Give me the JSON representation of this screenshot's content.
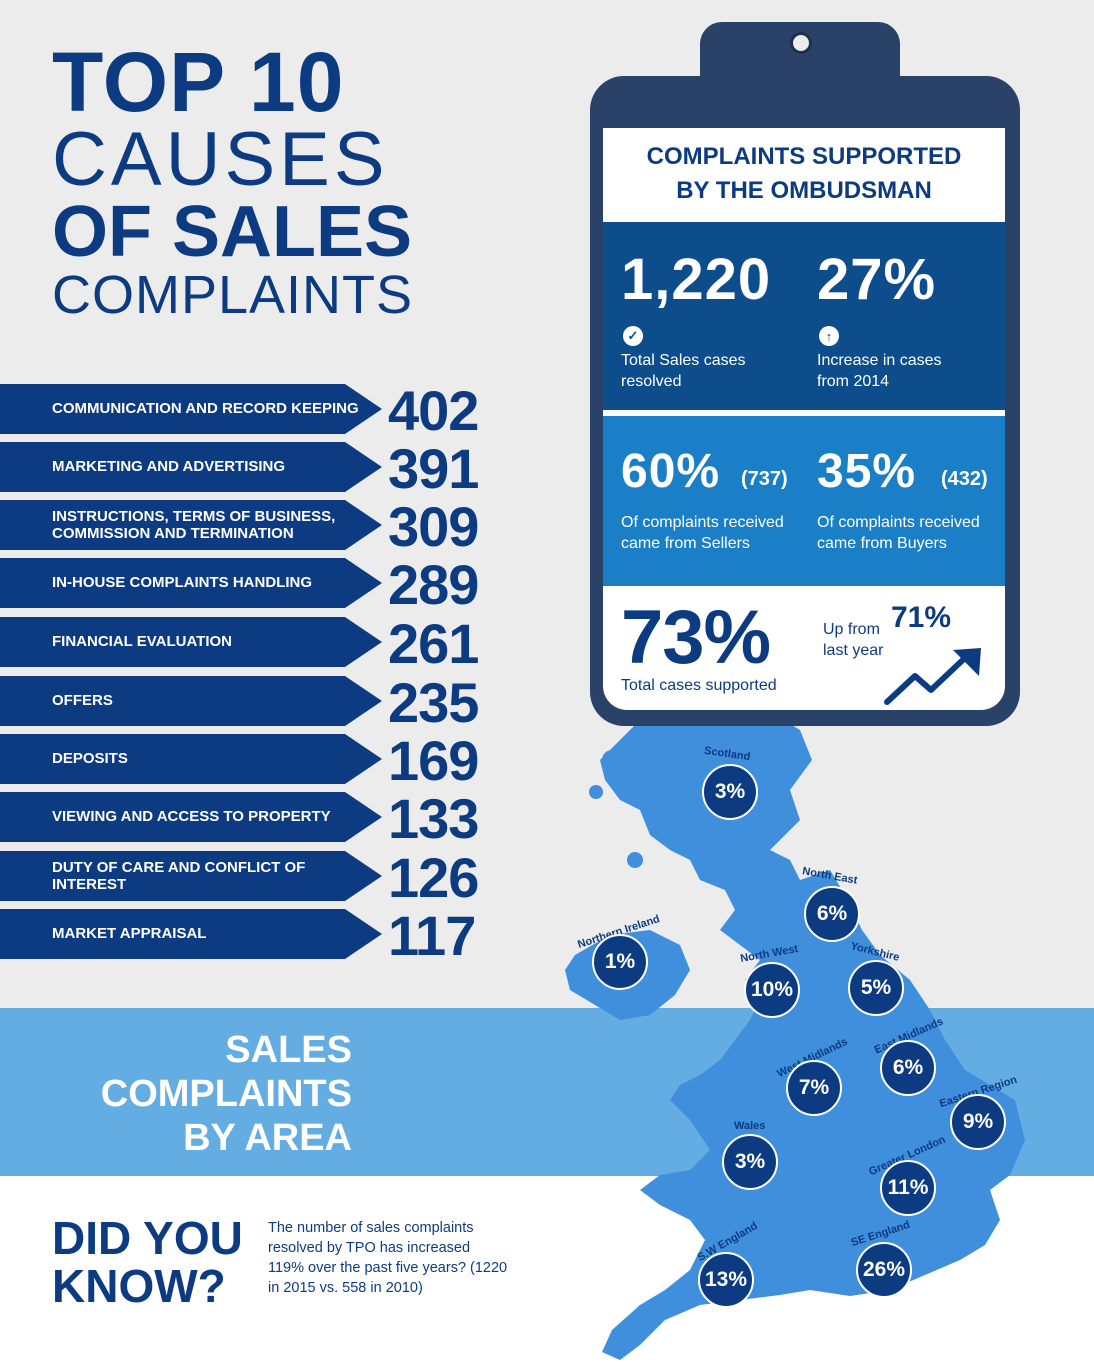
{
  "title": {
    "line1": "TOP 10",
    "line2": "CAUSES",
    "line3": "OF SALES",
    "line4": "COMPLAINTS"
  },
  "causes": [
    {
      "label": "COMMUNICATION AND RECORD KEEPING",
      "value": "402"
    },
    {
      "label": "MARKETING AND ADVERTISING",
      "value": "391"
    },
    {
      "label": "INSTRUCTIONS, TERMS OF BUSINESS, COMMISSION AND TERMINATION",
      "value": "309"
    },
    {
      "label": "IN-HOUSE COMPLAINTS HANDLING",
      "value": "289"
    },
    {
      "label": "FINANCIAL EVALUATION",
      "value": "261"
    },
    {
      "label": "OFFERS",
      "value": "235"
    },
    {
      "label": "DEPOSITS",
      "value": "169"
    },
    {
      "label": "VIEWING AND ACCESS TO PROPERTY",
      "value": "133"
    },
    {
      "label": "DUTY OF CARE AND CONFLICT OF INTEREST",
      "value": "126"
    },
    {
      "label": "MARKET APPRAISAL",
      "value": "117"
    }
  ],
  "clipboard": {
    "heading_line1": "COMPLAINTS SUPPORTED",
    "heading_line2": "BY THE OMBUDSMAN",
    "stat1_value": "1,220",
    "stat1_icon": "check-icon",
    "stat1_text": "Total Sales cases resolved",
    "stat2_value": "27%",
    "stat2_icon": "arrow-up-icon",
    "stat2_text": "Increase in cases from 2014",
    "stat3_value": "60%",
    "stat3_count": "(737)",
    "stat3_text": "Of complaints received came from Sellers",
    "stat4_value": "35%",
    "stat4_count": "(432)",
    "stat4_text": "Of complaints received came from Buyers",
    "stat5_value": "73%",
    "stat5_text": "Total cases supported",
    "stat6_prefix": "Up from",
    "stat6_value": "71%",
    "stat6_suffix": "last year",
    "trend_icon": "trend-up-icon"
  },
  "area_title": {
    "line1": "SALES",
    "line2": "COMPLAINTS",
    "line3": "BY AREA"
  },
  "regions": [
    {
      "name": "Scotland",
      "value": "3%"
    },
    {
      "name": "North East",
      "value": "6%"
    },
    {
      "name": "Northern Ireland",
      "value": "1%"
    },
    {
      "name": "North West",
      "value": "10%"
    },
    {
      "name": "Yorkshire",
      "value": "5%"
    },
    {
      "name": "East Midlands",
      "value": "6%"
    },
    {
      "name": "West Midlands",
      "value": "7%"
    },
    {
      "name": "Eastern Region",
      "value": "9%"
    },
    {
      "name": "Wales",
      "value": "3%"
    },
    {
      "name": "Greater London",
      "value": "11%"
    },
    {
      "name": "SE England",
      "value": "26%"
    },
    {
      "name": "S.W England",
      "value": "13%"
    }
  ],
  "did_you_know": {
    "line1": "DID YOU",
    "line2": "KNOW?",
    "text": "The number of sales complaints resolved by TPO has increased 119% over the past five years? (1220 in 2015 vs. 558 in 2010)"
  },
  "colors": {
    "navy": "#0d3b82",
    "map_blue": "#3f8fdc",
    "band_blue": "#63ade2",
    "background": "#ececec",
    "clipboard": "#2b4268"
  }
}
